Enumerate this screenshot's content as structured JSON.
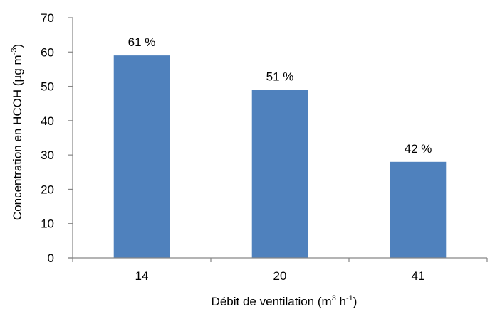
{
  "chart_data": {
    "type": "bar",
    "categories": [
      "14",
      "20",
      "41"
    ],
    "values": [
      59,
      49,
      28
    ],
    "data_labels": [
      "61 %",
      "51 %",
      "42 %"
    ],
    "title": "",
    "xlabel": {
      "prefix": "Débit de ventilation  (m",
      "sup1": "3",
      "middle": " h",
      "sup2": "-1",
      "suffix": ")"
    },
    "ylabel": {
      "prefix": "Concentration en HCOH (µg m",
      "sup": "-3",
      "suffix": ")"
    },
    "ylim": [
      0,
      70
    ],
    "yticks": [
      0,
      10,
      20,
      30,
      40,
      50,
      60,
      70
    ],
    "grid": false,
    "legend": "none",
    "bar_color": "#4F81BD"
  }
}
